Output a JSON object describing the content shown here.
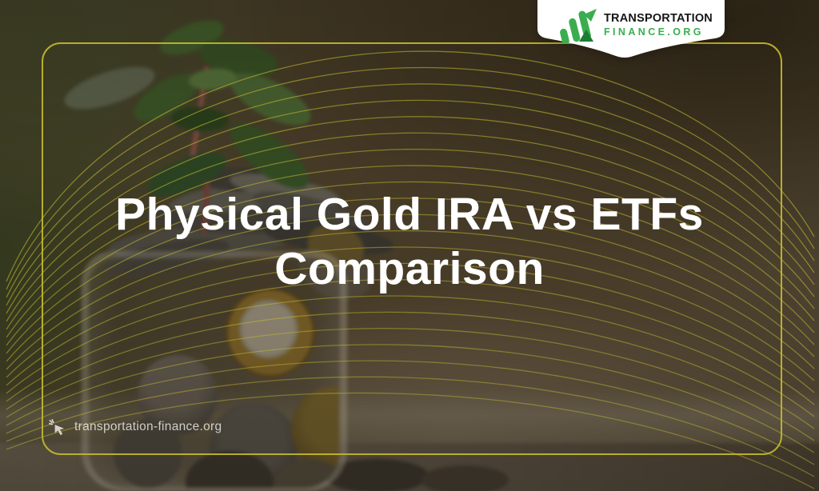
{
  "brand": {
    "name_line1": "TRANSPORTATION",
    "name_line2": "FINANCE.ORG",
    "logo_icon": "growth-chart-logo-icon",
    "green": "#3aae4f",
    "green_dark": "#1d7c35",
    "text_color": "#161616",
    "card_background": "#ffffff"
  },
  "hero": {
    "title": "Physical Gold IRA vs ETFs Comparison",
    "title_line1": "Physical Gold IRA vs ETFs",
    "title_line2": "Comparison",
    "text_color": "#ffffff"
  },
  "watermark": {
    "icon": "cursor-click-icon",
    "text": "transportation-finance.org"
  },
  "decor": {
    "frame_color": "#c2b92e",
    "curve_color": "#c9bf33",
    "photo_description": "glass jar overflowing with coins and a green seedling growing from it"
  }
}
